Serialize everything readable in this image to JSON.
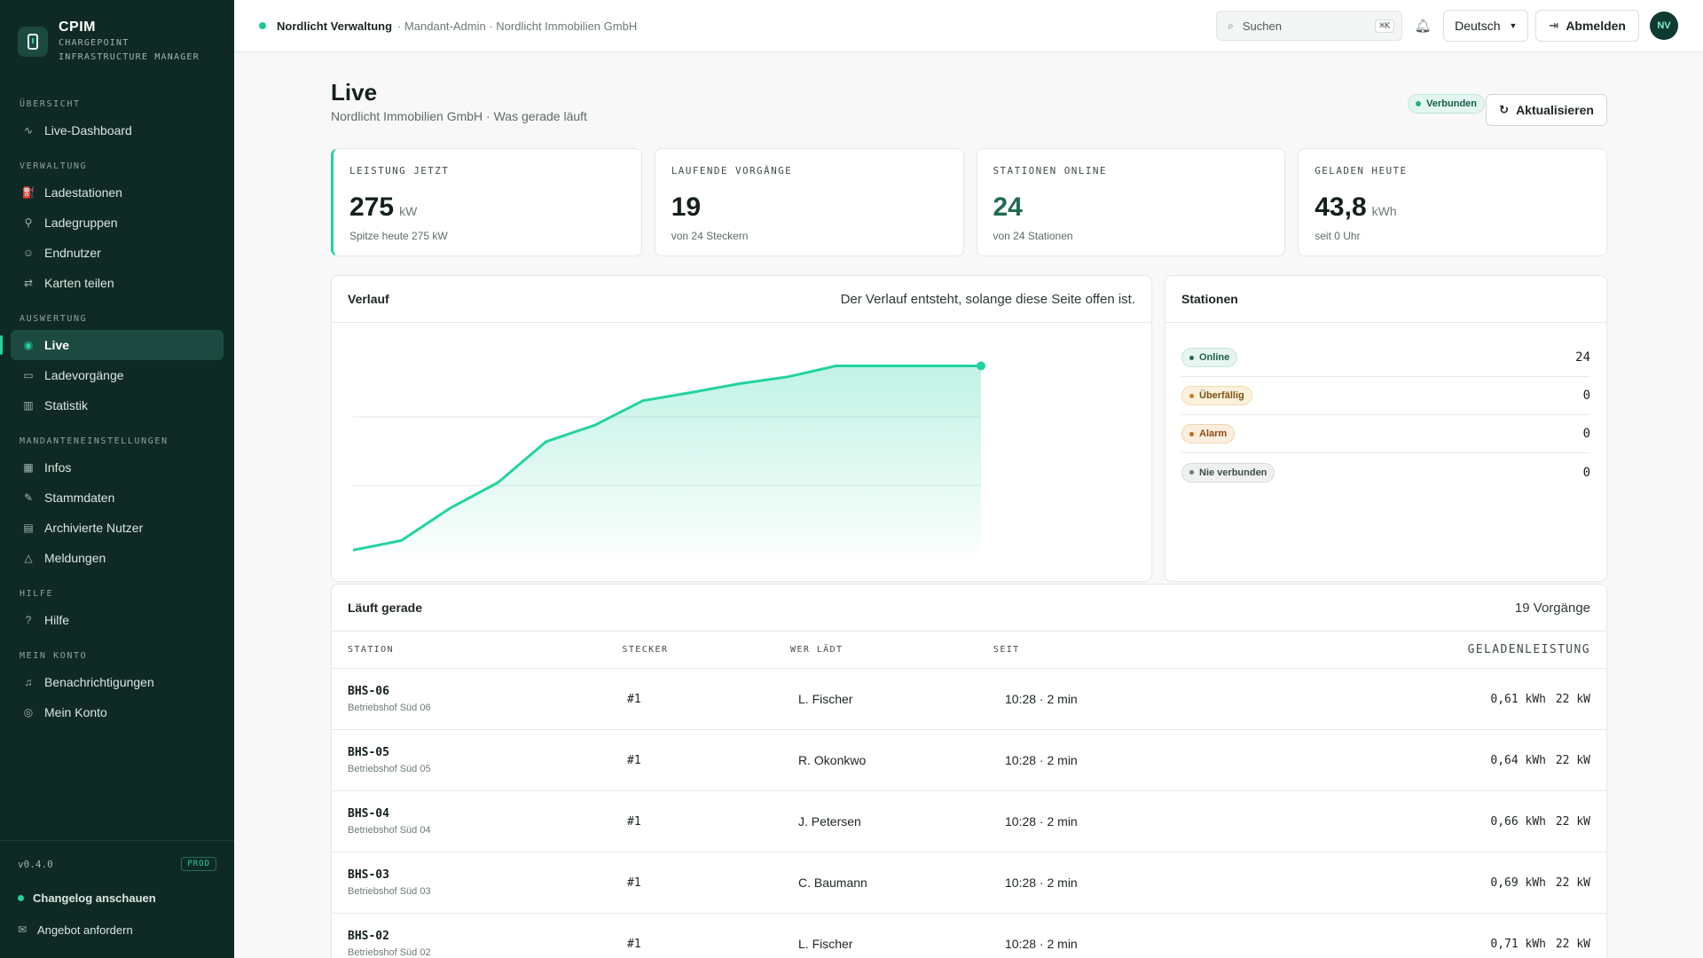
{
  "brand": {
    "name": "CPIM",
    "sub_line1": "CHARGEPOINT",
    "sub_line2": "INFRASTRUCTURE MANAGER"
  },
  "nav": {
    "sections": [
      {
        "title": "ÜBERSICHT",
        "items": [
          {
            "label": "Live-Dashboard",
            "icon": "activity-icon"
          }
        ]
      },
      {
        "title": "VERWALTUNG",
        "items": [
          {
            "label": "Ladestationen",
            "icon": "charger-icon"
          },
          {
            "label": "Ladegruppen",
            "icon": "group-icon"
          },
          {
            "label": "Endnutzer",
            "icon": "user-icon"
          },
          {
            "label": "Karten teilen",
            "icon": "share-icon"
          }
        ]
      },
      {
        "title": "AUSWERTUNG",
        "items": [
          {
            "label": "Live",
            "icon": "broadcast-icon",
            "active": true
          },
          {
            "label": "Ladevorgänge",
            "icon": "session-icon"
          },
          {
            "label": "Statistik",
            "icon": "bar-chart-icon"
          }
        ]
      },
      {
        "title": "MANDANTENEINSTELLUNGEN",
        "items": [
          {
            "label": "Infos",
            "icon": "building-icon"
          },
          {
            "label": "Stammdaten",
            "icon": "edit-icon"
          },
          {
            "label": "Archivierte Nutzer",
            "icon": "archive-icon"
          },
          {
            "label": "Meldungen",
            "icon": "warning-icon"
          }
        ]
      },
      {
        "title": "HILFE",
        "items": [
          {
            "label": "Hilfe",
            "icon": "help-icon"
          }
        ]
      },
      {
        "title": "MEIN KONTO",
        "items": [
          {
            "label": "Benachrichtigungen",
            "icon": "bell-icon"
          },
          {
            "label": "Mein Konto",
            "icon": "account-icon"
          }
        ]
      }
    ]
  },
  "footer": {
    "version": "v0.4.0",
    "env": "PROD",
    "changelog": "Changelog anschauen",
    "offer": "Angebot anfordern"
  },
  "topbar": {
    "org": "Nordlicht Verwaltung",
    "context": "· Mandant-Admin · Nordlicht Immobilien GmbH",
    "search_placeholder": "Suchen",
    "search_kbd": "⌘K",
    "language": "Deutsch",
    "logout": "Abmelden",
    "avatar": "NV"
  },
  "page": {
    "title": "Live",
    "subtitle": "Nordlicht Immobilien GmbH · Was gerade läuft",
    "status": "Verbunden",
    "refresh": "Aktualisieren"
  },
  "kpis": [
    {
      "label": "LEISTUNG JETZT",
      "value": "275",
      "unit": "kW",
      "sub": "Spitze heute 275 kW"
    },
    {
      "label": "LAUFENDE VORGÄNGE",
      "value": "19",
      "unit": "",
      "sub": "von 24 Steckern"
    },
    {
      "label": "STATIONEN ONLINE",
      "value": "24",
      "unit": "",
      "sub": "von 24 Stationen"
    },
    {
      "label": "GELADEN HEUTE",
      "value": "43,8",
      "unit": "kWh",
      "sub": "seit 0 Uhr"
    }
  ],
  "chart": {
    "title": "Verlauf",
    "note": "Der Verlauf entsteht, solange diese Seite offen ist.",
    "line_color": "#22d3a0"
  },
  "chart_data": {
    "type": "area",
    "title": "Verlauf",
    "xlabel": "",
    "ylabel": "",
    "x": [
      0,
      1,
      2,
      3,
      4,
      5,
      6,
      7,
      8,
      9,
      10,
      11,
      12,
      13
    ],
    "values": [
      5,
      19,
      66,
      104,
      164,
      188,
      224,
      236,
      249,
      259,
      275,
      275,
      275,
      275
    ],
    "ylim": [
      0,
      325
    ],
    "grid": true
  },
  "stations": {
    "title": "Stationen",
    "rows": [
      {
        "label": "Online",
        "value": "24",
        "kind": "online"
      },
      {
        "label": "Überfällig",
        "value": "0",
        "kind": "due"
      },
      {
        "label": "Alarm",
        "value": "0",
        "kind": "alarm"
      },
      {
        "label": "Nie verbunden",
        "value": "0",
        "kind": "never"
      }
    ]
  },
  "sessions": {
    "title": "Läuft gerade",
    "count": "19 Vorgänge",
    "columns": {
      "station": "STATION",
      "plug": "STECKER",
      "who": "WER LÄDT",
      "since": "SEIT",
      "charged": "GELADEN",
      "power": "LEISTUNG"
    },
    "rows": [
      {
        "id": "BHS-06",
        "name": "Betriebshof Süd 06",
        "plug": "#1",
        "who": "L. Fischer",
        "since": "10:28 · 2 min",
        "charged": "0,61 kWh",
        "power": "22 kW"
      },
      {
        "id": "BHS-05",
        "name": "Betriebshof Süd 05",
        "plug": "#1",
        "who": "R. Okonkwo",
        "since": "10:28 · 2 min",
        "charged": "0,64 kWh",
        "power": "22 kW"
      },
      {
        "id": "BHS-04",
        "name": "Betriebshof Süd 04",
        "plug": "#1",
        "who": "J. Petersen",
        "since": "10:28 · 2 min",
        "charged": "0,66 kWh",
        "power": "22 kW"
      },
      {
        "id": "BHS-03",
        "name": "Betriebshof Süd 03",
        "plug": "#1",
        "who": "C. Baumann",
        "since": "10:28 · 2 min",
        "charged": "0,69 kWh",
        "power": "22 kW"
      },
      {
        "id": "BHS-02",
        "name": "Betriebshof Süd 02",
        "plug": "#1",
        "who": "L. Fischer",
        "since": "10:28 · 2 min",
        "charged": "0,71 kWh",
        "power": "22 kW"
      }
    ]
  }
}
